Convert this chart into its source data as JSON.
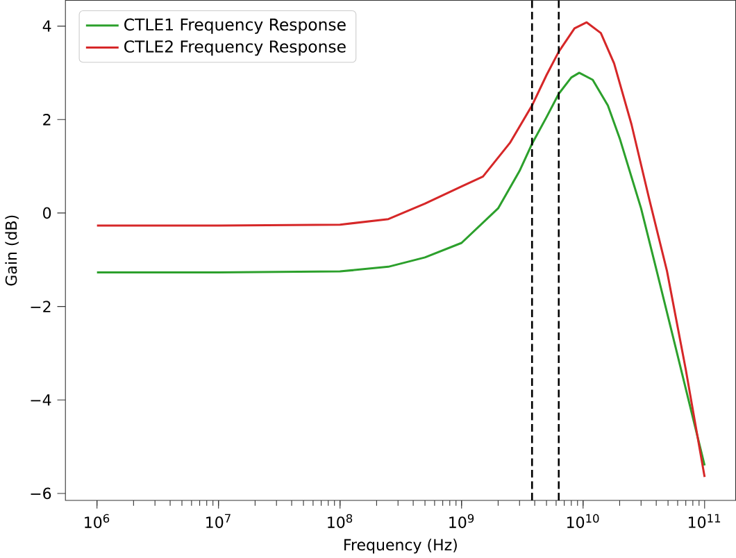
{
  "chart_data": {
    "type": "line",
    "xlabel": "Frequency (Hz)",
    "ylabel": "Gain (dB)",
    "log": "x",
    "grid": false,
    "legend": "top left",
    "marker": "none",
    "line_style": "solid",
    "xlim": [
      550000,
      180000000000
    ],
    "ylim": [
      -6.15,
      4.55
    ],
    "xticks": [
      {
        "value": 1000000,
        "label": "10$^{6}$"
      },
      {
        "value": 10000000,
        "label": "10$^{7}$"
      },
      {
        "value": 100000000,
        "label": "10$^{8}$"
      },
      {
        "value": 1000000000,
        "label": "10$^{9}$"
      },
      {
        "value": 10000000000,
        "label": "10$^{10}$"
      },
      {
        "value": 100000000000,
        "label": "10$^{11}$"
      }
    ],
    "yticks": [
      {
        "value": -6,
        "label": "−6"
      },
      {
        "value": -4,
        "label": "−4"
      },
      {
        "value": -2,
        "label": "−2"
      },
      0,
      2,
      4
    ],
    "ref_lines": [
      {
        "axis": "x",
        "value": 3800000000,
        "color": "#000000",
        "line_style": "dashed"
      },
      {
        "axis": "x",
        "value": 6300000000,
        "color": "#000000",
        "line_style": "dashed"
      }
    ],
    "series": [
      {
        "name": "CTLE1 Frequency Response",
        "color": "#2ca02c",
        "x": [
          1000000,
          10000000,
          100000000,
          250000000,
          500000000,
          1000000000,
          2000000000,
          3000000000,
          3800000000,
          5000000000,
          6300000000,
          8000000000,
          9300000000,
          12000000000,
          16000000000,
          20000000000,
          30000000000,
          40000000000,
          60000000000,
          100000000000
        ],
        "values": [
          -1.27,
          -1.27,
          -1.25,
          -1.15,
          -0.95,
          -0.64,
          0.1,
          0.9,
          1.48,
          2.05,
          2.55,
          2.9,
          3.0,
          2.85,
          2.3,
          1.6,
          0.1,
          -1.2,
          -3.05,
          -5.4
        ]
      },
      {
        "name": "CTLE2 Frequency Response",
        "color": "#d62728",
        "x": [
          1000000,
          10000000,
          100000000,
          250000000,
          500000000,
          1000000000,
          1500000000,
          2500000000,
          3800000000,
          5000000000,
          6300000000,
          8500000000,
          10700000000,
          14000000000,
          18000000000,
          25000000000,
          35000000000,
          49000000000,
          70000000000,
          100000000000
        ],
        "values": [
          -0.27,
          -0.27,
          -0.25,
          -0.13,
          0.2,
          0.57,
          0.78,
          1.5,
          2.3,
          2.95,
          3.45,
          3.95,
          4.08,
          3.85,
          3.2,
          1.9,
          0.3,
          -1.24,
          -3.35,
          -5.65
        ]
      }
    ]
  }
}
